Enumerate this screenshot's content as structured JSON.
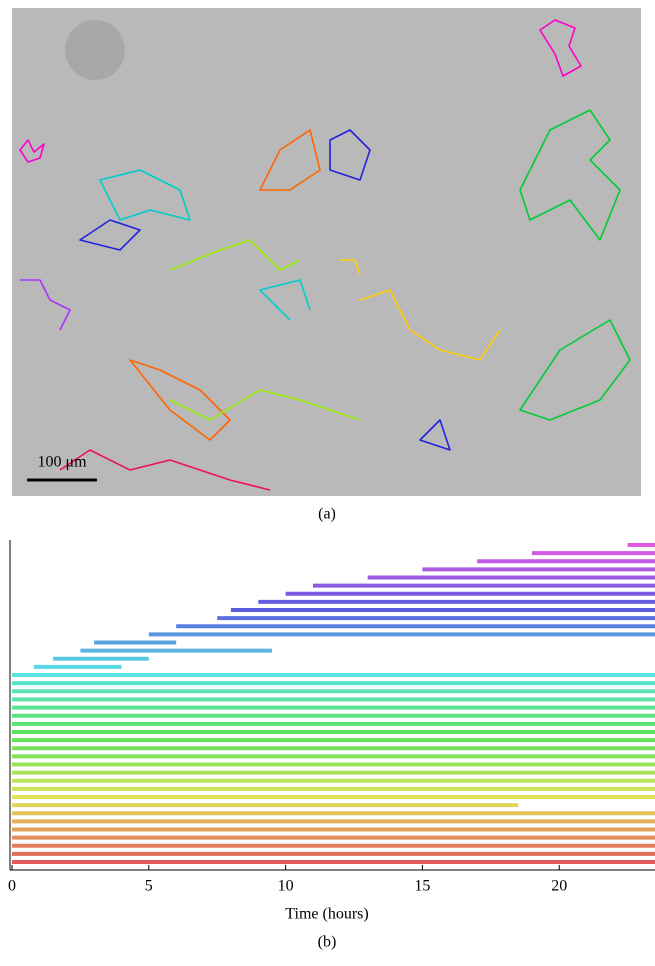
{
  "panel_a": {
    "scale_bar": "100 μm",
    "caption": "(a)"
  },
  "chart_data": {
    "type": "timeline",
    "xlabel": "Time (hours)",
    "caption": "(b)",
    "xlim": [
      0,
      23.5
    ],
    "xticks": [
      0,
      5,
      10,
      15,
      20
    ],
    "tracks": [
      {
        "start": 0,
        "end": 23.5,
        "color": "hsl(0,70%,62%)"
      },
      {
        "start": 0,
        "end": 23.5,
        "color": "hsl(8,70%,62%)"
      },
      {
        "start": 0,
        "end": 23.5,
        "color": "hsl(15,70%,62%)"
      },
      {
        "start": 0,
        "end": 23.5,
        "color": "hsl(23,70%,62%)"
      },
      {
        "start": 0,
        "end": 23.5,
        "color": "hsl(31,70%,62%)"
      },
      {
        "start": 0,
        "end": 23.5,
        "color": "hsl(38,70%,62%)"
      },
      {
        "start": 0,
        "end": 23.5,
        "color": "hsl(46,70%,62%)"
      },
      {
        "start": 0,
        "end": 18.5,
        "color": "hsl(54,70%,62%)"
      },
      {
        "start": 0,
        "end": 23.5,
        "color": "hsl(62,70%,62%)"
      },
      {
        "start": 0,
        "end": 23.5,
        "color": "hsl(69,70%,62%)"
      },
      {
        "start": 0,
        "end": 23.5,
        "color": "hsl(77,70%,62%)"
      },
      {
        "start": 0,
        "end": 23.5,
        "color": "hsl(85,70%,62%)"
      },
      {
        "start": 0,
        "end": 23.5,
        "color": "hsl(92,70%,62%)"
      },
      {
        "start": 0,
        "end": 23.5,
        "color": "hsl(100,70%,62%)"
      },
      {
        "start": 0,
        "end": 23.5,
        "color": "hsl(108,70%,62%)"
      },
      {
        "start": 0,
        "end": 23.5,
        "color": "hsl(115,70%,62%)"
      },
      {
        "start": 0,
        "end": 23.5,
        "color": "hsl(123,70%,62%)"
      },
      {
        "start": 0,
        "end": 23.5,
        "color": "hsl(131,70%,62%)"
      },
      {
        "start": 0,
        "end": 23.5,
        "color": "hsl(138,70%,62%)"
      },
      {
        "start": 0,
        "end": 23.5,
        "color": "hsl(146,70%,62%)"
      },
      {
        "start": 0,
        "end": 23.5,
        "color": "hsl(154,70%,62%)"
      },
      {
        "start": 0,
        "end": 23.5,
        "color": "hsl(162,70%,62%)"
      },
      {
        "start": 0,
        "end": 23.5,
        "color": "hsl(169,70%,62%)"
      },
      {
        "start": 0,
        "end": 23.5,
        "color": "hsl(177,70%,62%)"
      },
      {
        "start": 0.8,
        "end": 4,
        "color": "hsl(185,70%,62%)"
      },
      {
        "start": 1.5,
        "end": 5,
        "color": "hsl(192,70%,62%)"
      },
      {
        "start": 2.5,
        "end": 9.5,
        "color": "hsl(200,70%,62%)"
      },
      {
        "start": 3,
        "end": 6,
        "color": "hsl(208,70%,62%)"
      },
      {
        "start": 5,
        "end": 23.5,
        "color": "hsl(215,70%,62%)"
      },
      {
        "start": 6,
        "end": 23.5,
        "color": "hsl(223,70%,62%)"
      },
      {
        "start": 7.5,
        "end": 23.5,
        "color": "hsl(231,70%,62%)"
      },
      {
        "start": 8,
        "end": 23.5,
        "color": "hsl(238,70%,62%)"
      },
      {
        "start": 9,
        "end": 23.5,
        "color": "hsl(246,70%,62%)"
      },
      {
        "start": 10,
        "end": 23.5,
        "color": "hsl(254,70%,62%)"
      },
      {
        "start": 11,
        "end": 23.5,
        "color": "hsl(262,70%,62%)"
      },
      {
        "start": 13,
        "end": 23.5,
        "color": "hsl(269,70%,62%)"
      },
      {
        "start": 15,
        "end": 23.5,
        "color": "hsl(277,70%,62%)"
      },
      {
        "start": 17,
        "end": 23.5,
        "color": "hsl(285,70%,62%)"
      },
      {
        "start": 19,
        "end": 23.5,
        "color": "hsl(292,70%,62%)"
      },
      {
        "start": 22.5,
        "end": 23.5,
        "color": "hsl(300,70%,62%)"
      }
    ]
  }
}
